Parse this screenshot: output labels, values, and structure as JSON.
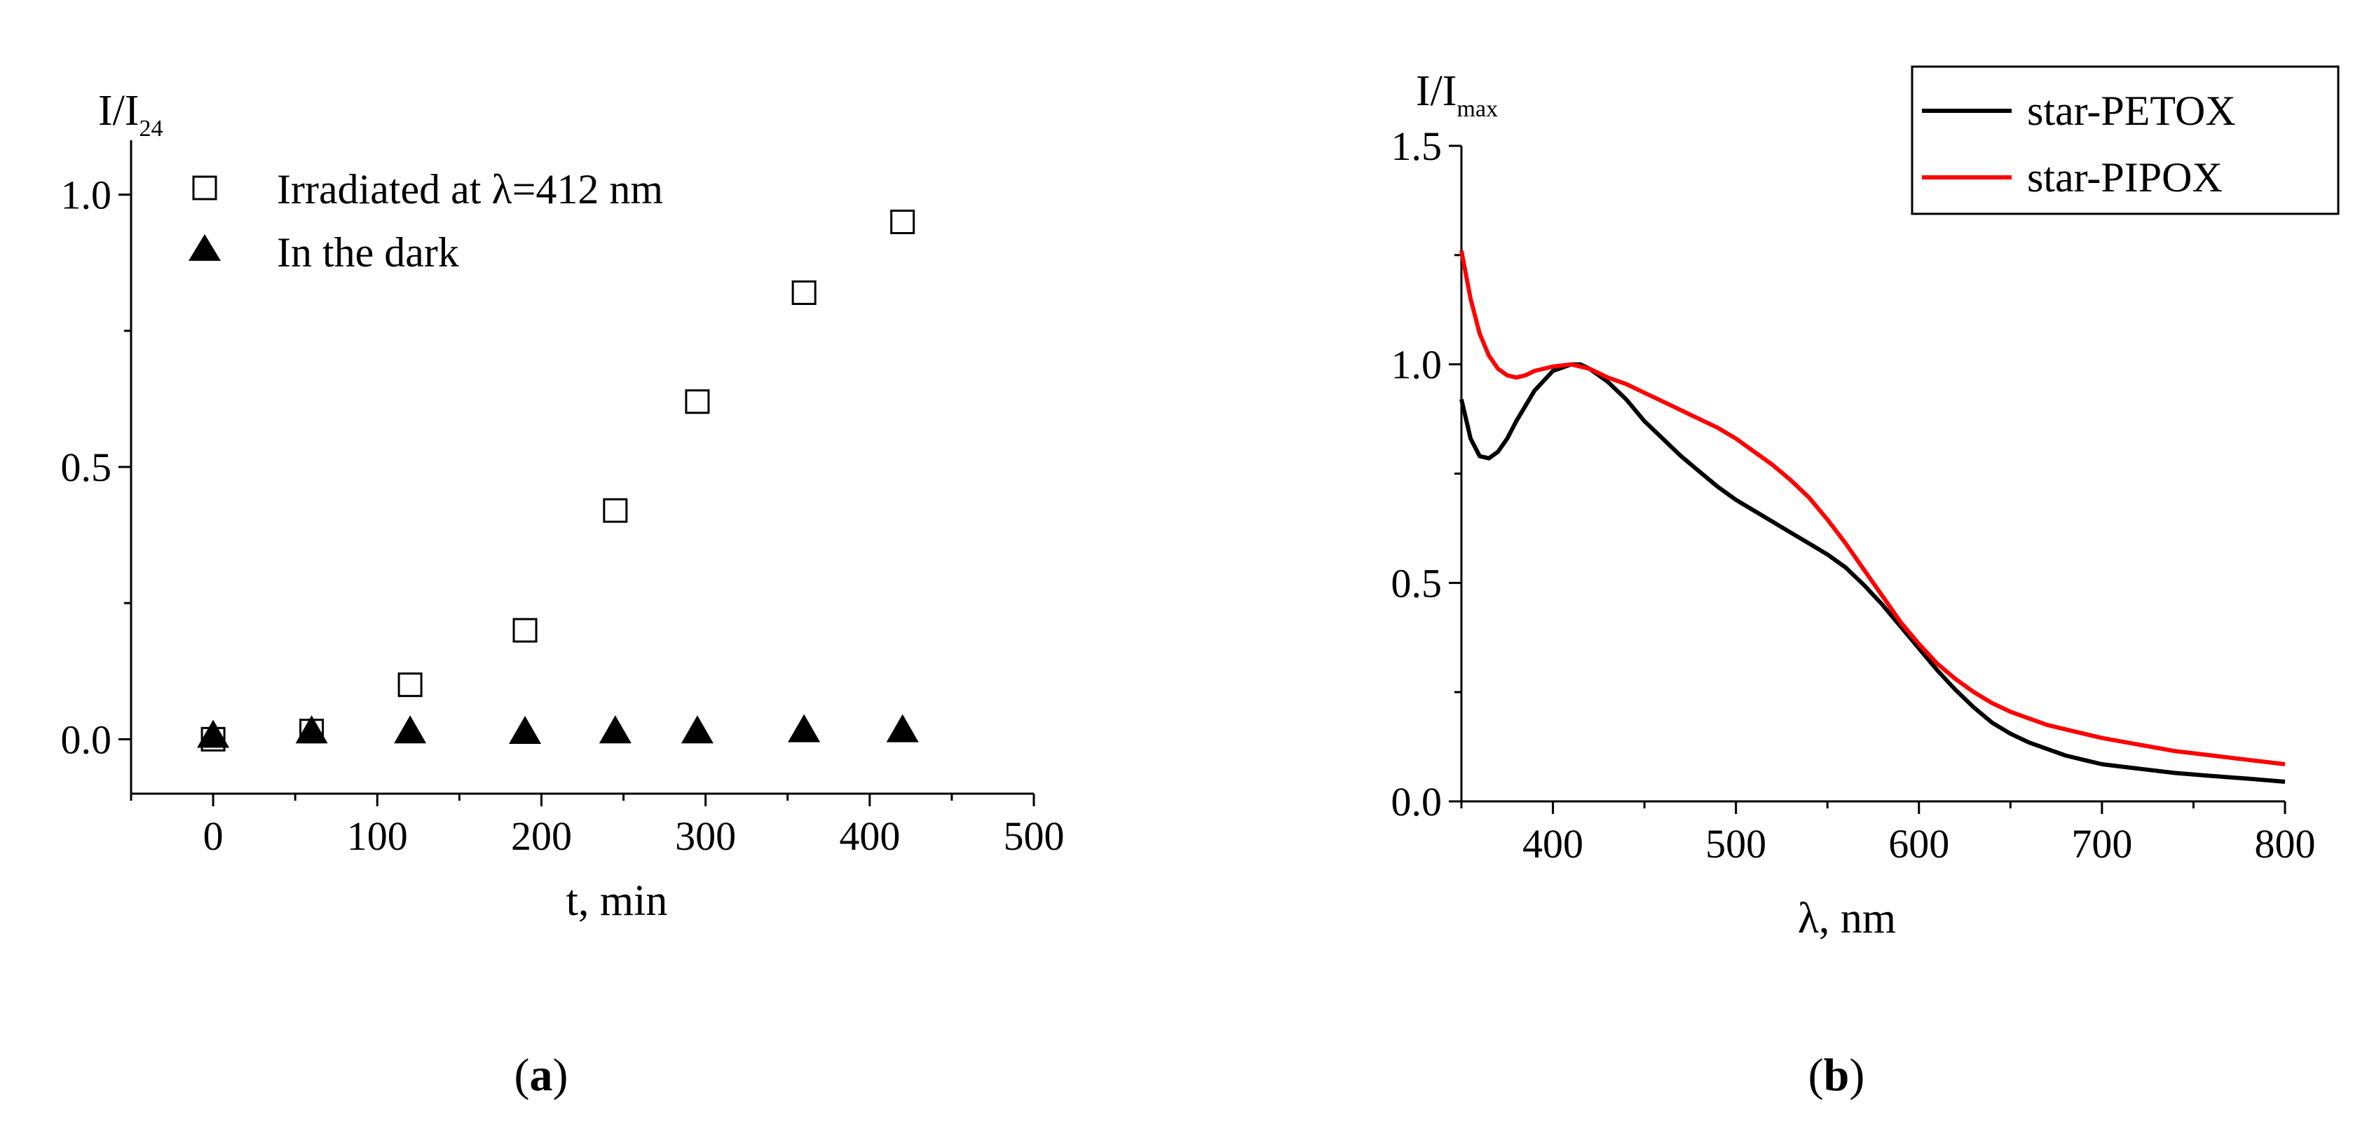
{
  "chart_data": [
    {
      "panel": "a",
      "type": "scatter",
      "xlabel": "t, min",
      "ylabel": {
        "main": "I/I",
        "sub": "24"
      },
      "xlim": [
        -50,
        500
      ],
      "ylim": [
        -0.1,
        1.1
      ],
      "xticks": [
        0,
        100,
        200,
        300,
        400,
        500
      ],
      "xtick_labels": [
        "0",
        "100",
        "200",
        "300",
        "400",
        "500"
      ],
      "yticks": [
        0.0,
        0.5,
        1.0
      ],
      "ytick_labels": [
        "0.0",
        "0.5",
        "1.0"
      ],
      "legend_position": "top-left",
      "series": [
        {
          "name": "Irradiated at λ=412 nm",
          "marker": "open-square",
          "x": [
            0,
            60,
            120,
            190,
            245,
            295,
            360,
            420
          ],
          "y": [
            0.0,
            0.015,
            0.1,
            0.2,
            0.42,
            0.62,
            0.82,
            0.95
          ]
        },
        {
          "name": "In the dark",
          "marker": "filled-triangle",
          "x": [
            0,
            60,
            120,
            190,
            245,
            295,
            360,
            420
          ],
          "y": [
            0.005,
            0.013,
            0.013,
            0.012,
            0.013,
            0.013,
            0.015,
            0.015
          ]
        }
      ]
    },
    {
      "panel": "b",
      "type": "line",
      "xlabel": "λ, nm",
      "ylabel": {
        "main": "I/I",
        "sub": "max"
      },
      "xlim": [
        350,
        800
      ],
      "ylim": [
        0,
        1.5
      ],
      "xticks": [
        400,
        500,
        600,
        700,
        800
      ],
      "xtick_labels": [
        "400",
        "500",
        "600",
        "700",
        "800"
      ],
      "yticks": [
        0.0,
        0.5,
        1.0,
        1.5
      ],
      "ytick_labels": [
        "0.0",
        "0.5",
        "1.0",
        "1.5"
      ],
      "legend_position": "top-right",
      "series": [
        {
          "name": "star-PETOX",
          "color": "#000000",
          "x": [
            350,
            355,
            360,
            365,
            370,
            375,
            380,
            390,
            400,
            410,
            415,
            420,
            430,
            440,
            450,
            460,
            470,
            480,
            490,
            500,
            510,
            520,
            530,
            540,
            550,
            560,
            570,
            580,
            590,
            600,
            610,
            620,
            630,
            640,
            650,
            660,
            670,
            680,
            690,
            700,
            720,
            740,
            760,
            780,
            800
          ],
          "y": [
            0.92,
            0.83,
            0.79,
            0.785,
            0.8,
            0.83,
            0.87,
            0.94,
            0.985,
            1.0,
            1.0,
            0.99,
            0.96,
            0.92,
            0.87,
            0.83,
            0.79,
            0.755,
            0.72,
            0.69,
            0.665,
            0.64,
            0.615,
            0.59,
            0.565,
            0.535,
            0.495,
            0.45,
            0.4,
            0.35,
            0.3,
            0.255,
            0.215,
            0.18,
            0.155,
            0.135,
            0.12,
            0.105,
            0.095,
            0.085,
            0.075,
            0.065,
            0.058,
            0.052,
            0.045
          ]
        },
        {
          "name": "star-PIPOX",
          "color": "#ff0000",
          "x": [
            350,
            355,
            360,
            365,
            370,
            375,
            380,
            385,
            390,
            400,
            410,
            420,
            430,
            440,
            450,
            460,
            470,
            480,
            490,
            500,
            510,
            520,
            530,
            540,
            550,
            560,
            570,
            580,
            590,
            600,
            610,
            620,
            630,
            640,
            650,
            660,
            670,
            680,
            690,
            700,
            720,
            740,
            760,
            780,
            800
          ],
          "y": [
            1.26,
            1.15,
            1.07,
            1.02,
            0.99,
            0.975,
            0.97,
            0.975,
            0.985,
            0.995,
            1.0,
            0.99,
            0.97,
            0.955,
            0.935,
            0.915,
            0.895,
            0.875,
            0.855,
            0.83,
            0.8,
            0.77,
            0.735,
            0.695,
            0.645,
            0.59,
            0.53,
            0.47,
            0.41,
            0.36,
            0.315,
            0.28,
            0.25,
            0.225,
            0.205,
            0.19,
            0.175,
            0.165,
            0.155,
            0.145,
            0.13,
            0.115,
            0.105,
            0.095,
            0.085
          ]
        }
      ]
    }
  ],
  "panel_labels": [
    "a",
    "b"
  ]
}
